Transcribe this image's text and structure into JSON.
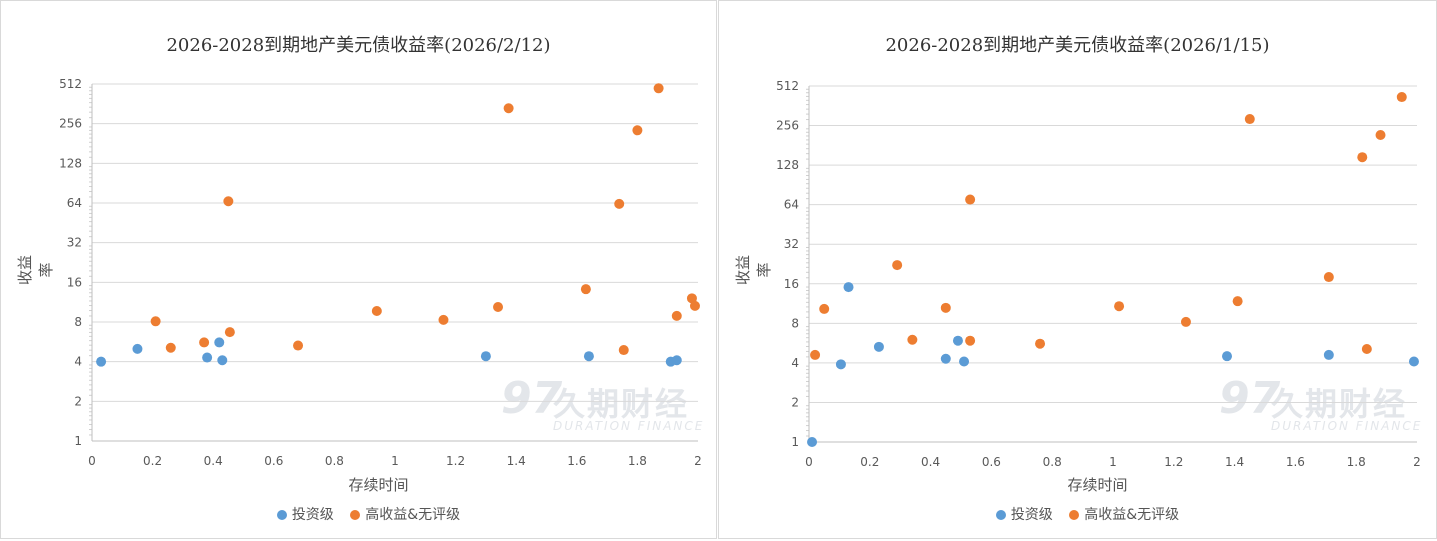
{
  "watermark": {
    "logo": "97",
    "cn": "久期财经",
    "en": "DURATION FINANCE"
  },
  "colors": {
    "investment_grade": "#5b9bd5",
    "high_yield": "#ed7d31",
    "grid": "#d9d9d9"
  },
  "chart_data": [
    {
      "type": "scatter",
      "title": "2026-2028到期地产美元债收益率(2026/2/12)",
      "xlabel": "存续时间",
      "ylabel": "收益率",
      "xlim": [
        0,
        2
      ],
      "ylim": [
        1,
        512
      ],
      "yscale": "log2",
      "xticks": [
        "0",
        "0.2",
        "0.4",
        "0.6",
        "0.8",
        "1",
        "1.2",
        "1.4",
        "1.6",
        "1.8",
        "2"
      ],
      "yticks": [
        "1",
        "2",
        "4",
        "8",
        "16",
        "32",
        "64",
        "128",
        "256",
        "512"
      ],
      "grid": "horizontal",
      "legend": "bottom",
      "series": [
        {
          "name": "投资级",
          "color": "#5b9bd5",
          "points": [
            [
              0.03,
              4.0
            ],
            [
              0.15,
              5.0
            ],
            [
              0.38,
              4.3
            ],
            [
              0.42,
              5.6
            ],
            [
              0.43,
              4.1
            ],
            [
              1.3,
              4.4
            ],
            [
              1.64,
              4.4
            ],
            [
              1.91,
              4.0
            ],
            [
              1.93,
              4.1
            ]
          ]
        },
        {
          "name": "高收益&无评级",
          "color": "#ed7d31",
          "points": [
            [
              0.21,
              8.1
            ],
            [
              0.26,
              5.1
            ],
            [
              0.37,
              5.6
            ],
            [
              0.455,
              6.7
            ],
            [
              0.45,
              66
            ],
            [
              0.68,
              5.3
            ],
            [
              0.94,
              9.7
            ],
            [
              1.16,
              8.3
            ],
            [
              1.34,
              10.4
            ],
            [
              1.375,
              335
            ],
            [
              1.63,
              14.2
            ],
            [
              1.74,
              63
            ],
            [
              1.755,
              4.9
            ],
            [
              1.8,
              228
            ],
            [
              1.87,
              475
            ],
            [
              1.93,
              8.9
            ],
            [
              1.98,
              12.1
            ],
            [
              1.99,
              10.6
            ]
          ]
        }
      ]
    },
    {
      "type": "scatter",
      "title": "2026-2028到期地产美元债收益率(2026/1/15)",
      "xlabel": "存续时间",
      "ylabel": "收益率",
      "xlim": [
        0,
        2
      ],
      "ylim": [
        1,
        512
      ],
      "yscale": "log2",
      "xticks": [
        "0",
        "0.2",
        "0.4",
        "0.6",
        "0.8",
        "1",
        "1.2",
        "1.4",
        "1.6",
        "1.8",
        "2"
      ],
      "yticks": [
        "1",
        "2",
        "4",
        "8",
        "16",
        "32",
        "64",
        "128",
        "256",
        "512"
      ],
      "grid": "horizontal",
      "legend": "bottom",
      "series": [
        {
          "name": "投资级",
          "color": "#5b9bd5",
          "points": [
            [
              0.01,
              1.0
            ],
            [
              0.105,
              3.9
            ],
            [
              0.13,
              15.1
            ],
            [
              0.23,
              5.3
            ],
            [
              0.45,
              4.3
            ],
            [
              0.49,
              5.9
            ],
            [
              0.51,
              4.1
            ],
            [
              1.375,
              4.5
            ],
            [
              1.71,
              4.6
            ],
            [
              1.99,
              4.1
            ]
          ]
        },
        {
          "name": "高收益&无评级",
          "color": "#ed7d31",
          "points": [
            [
              0.02,
              4.6
            ],
            [
              0.05,
              10.3
            ],
            [
              0.29,
              22.2
            ],
            [
              0.34,
              6.0
            ],
            [
              0.45,
              10.5
            ],
            [
              0.53,
              70
            ],
            [
              0.53,
              5.9
            ],
            [
              0.76,
              5.6
            ],
            [
              1.02,
              10.8
            ],
            [
              1.24,
              8.2
            ],
            [
              1.41,
              11.8
            ],
            [
              1.45,
              287
            ],
            [
              1.71,
              18
            ],
            [
              1.82,
              147
            ],
            [
              1.835,
              5.1
            ],
            [
              1.88,
              217
            ],
            [
              1.95,
              422
            ]
          ]
        }
      ]
    }
  ]
}
